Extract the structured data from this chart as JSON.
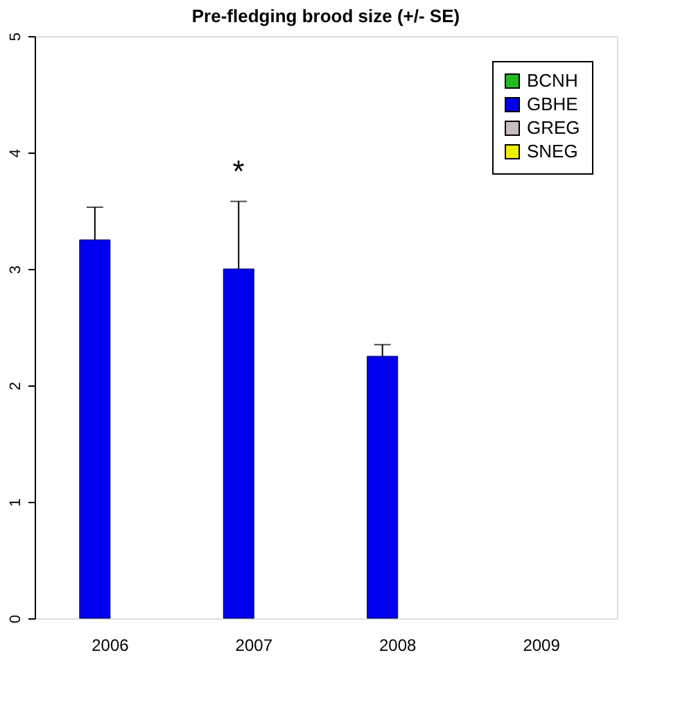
{
  "chart_data": {
    "type": "bar",
    "title": "Pre-fledging brood size (+/- SE)",
    "categories": [
      "2006",
      "2007",
      "2008",
      "2009"
    ],
    "series": [
      {
        "name": "BCNH",
        "color": "#22bb22",
        "values": [
          null,
          null,
          null,
          null
        ]
      },
      {
        "name": "GBHE",
        "color": "#0000ee",
        "values": [
          3.25,
          3.0,
          2.25,
          null
        ],
        "errors": [
          [
            3.25,
            3.53
          ],
          [
            3.0,
            3.58
          ],
          [
            2.25,
            2.35
          ],
          null
        ]
      },
      {
        "name": "GREG",
        "color": "#c8bebe",
        "values": [
          null,
          null,
          null,
          null
        ]
      },
      {
        "name": "SNEG",
        "color": "#eeee00",
        "values": [
          null,
          null,
          null,
          null
        ]
      }
    ],
    "ylim": [
      0,
      5
    ],
    "yticks": [
      0,
      1,
      2,
      3,
      4,
      5
    ],
    "grid": false,
    "legend": "top right",
    "annotations": [
      "*"
    ]
  }
}
